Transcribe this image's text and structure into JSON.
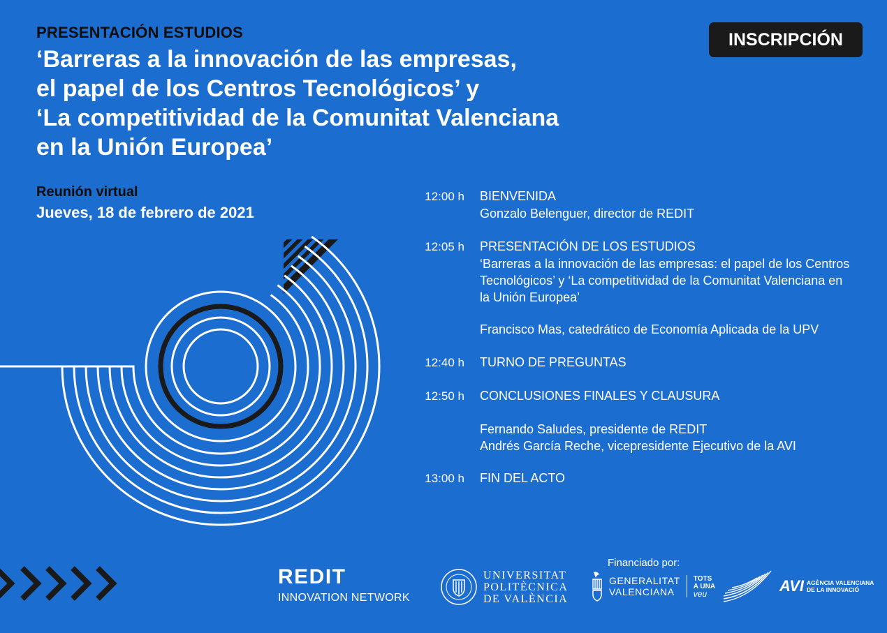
{
  "header": {
    "kicker": "PRESENTACIÓN ESTUDIOS",
    "title_lines": [
      "‘Barreras a la innovación de las empresas,",
      "el papel de los Centros Tecnológicos’ y",
      "‘La competitividad de la Comunitat Valenciana",
      "en la Unión Europea’"
    ],
    "register_label": "INSCRIPCIÓN"
  },
  "event": {
    "type": "Reunión virtual",
    "date": "Jueves, 18 de febrero de 2021"
  },
  "agenda": [
    {
      "time": "12:00 h",
      "title": "BIENVENIDA",
      "details": [
        "Gonzalo Belenguer, director de REDIT"
      ]
    },
    {
      "time": "12:05 h",
      "title": "PRESENTACIÓN DE LOS ESTUDIOS",
      "details": [
        "‘Barreras a la innovación de las empresas: el papel de los Centros",
        "Tecnológicos’ y ‘La competitividad de la Comunitat Valenciana en",
        "la Unión Europea’",
        "Francisco Mas, catedrático de Economía Aplicada de la UPV"
      ]
    },
    {
      "time": "12:40 h",
      "title": "TURNO DE PREGUNTAS",
      "details": []
    },
    {
      "time": "12:50 h",
      "title": "CONCLUSIONES FINALES Y CLAUSURA",
      "details": [
        "Fernando Saludes, presidente de REDIT",
        "Andrés García Reche, vicepresidente Ejecutivo de la AVI"
      ]
    },
    {
      "time": "13:00 h",
      "title": "FIN DEL ACTO",
      "details": []
    }
  ],
  "footer": {
    "financed_label": "Financiado por:",
    "redit": {
      "name": "REDIT",
      "sub": "INNOVATION NETWORK"
    },
    "upv": {
      "lines": [
        "UNIVERSITAT",
        "POLITÈCNICA",
        "DE VALÈNCIA"
      ]
    },
    "gv": {
      "lines": [
        "GENERALITAT",
        "VALENCIANA"
      ],
      "tots": [
        "TOTS",
        "A UNA",
        "veu"
      ]
    },
    "avi": {
      "big": "AVI",
      "small": [
        "AGÈNCIA VALENCIANA",
        "DE LA INNOVACIÓ"
      ]
    }
  },
  "colors": {
    "background": "#1c6dd0",
    "dark": "#1a1a1a",
    "text": "#ffffff"
  }
}
